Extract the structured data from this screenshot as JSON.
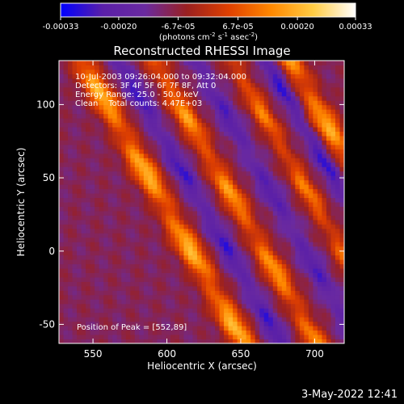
{
  "chart_data": {
    "type": "heatmap",
    "title": "Reconstructed RHESSI Image",
    "xlabel": "Heliocentric X (arcsec)",
    "ylabel": "Heliocentric Y (arcsec)",
    "xlim": [
      527,
      720
    ],
    "ylim": [
      -63,
      130
    ],
    "x_ticks": [
      550,
      600,
      650,
      700
    ],
    "y_ticks": [
      -50,
      0,
      50,
      100
    ],
    "colorbar": {
      "label_parts": [
        "(photons cm",
        "-2",
        " s",
        "-1",
        " asec",
        "-2",
        ")"
      ],
      "ticks": [
        "-0.00033",
        "-0.00020",
        "-6.7e-05",
        "6.7e-05",
        "0.00020",
        "0.00033"
      ],
      "min": -0.00033,
      "max": 0.00033,
      "colors": [
        "#0000ff",
        "#5a1fa8",
        "#6a2aa0",
        "#9a2020",
        "#e04000",
        "#ff8800",
        "#ffcc44",
        "#ffffff"
      ]
    },
    "annotations": [
      "10-Jul-2003 09:26:04.000 to 09:32:04.000",
      "Detectors: 3F 4F 5F 6F 7F 8F, Att 0",
      "Energy Range: 25.0 - 50.0 keV",
      "Clean    Total counts: 4.47E+03"
    ],
    "peak_label": "Position of Peak = [552,89]",
    "peak": [
      552,
      89
    ],
    "stripes": [
      {
        "x0": 548,
        "y0": 120,
        "slope": -1.75,
        "width": 9,
        "value": 0.0003
      },
      {
        "x0": 600,
        "y0": 115,
        "slope": -1.75,
        "width": 8,
        "value": 0.00026
      },
      {
        "x0": 650,
        "y0": 120,
        "slope": -1.75,
        "width": 7,
        "value": 0.00022
      },
      {
        "x0": 695,
        "y0": 110,
        "slope": -1.75,
        "width": 9,
        "value": 0.00028
      },
      {
        "x0": 573,
        "y0": 120,
        "slope": -1.75,
        "width": 7,
        "value": -0.00018
      },
      {
        "x0": 625,
        "y0": 120,
        "slope": -1.75,
        "width": 7,
        "value": -0.00016
      },
      {
        "x0": 673,
        "y0": 120,
        "slope": -1.75,
        "width": 6,
        "value": -0.0002
      }
    ]
  },
  "timestamp": "3-May-2022 12:41"
}
